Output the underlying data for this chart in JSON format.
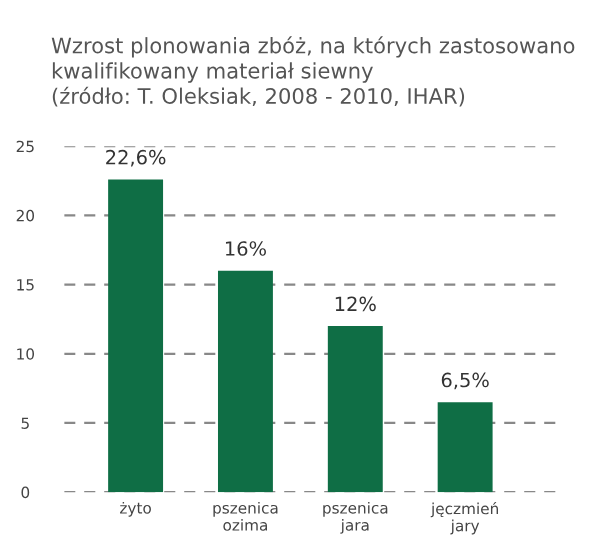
{
  "chart_data": {
    "type": "bar",
    "title": "Wzrost plonowania zbóż, na których zastosowano\nkwalifikowany materiał siewny\n(źródło: T. Oleksiak, 2008 - 2010, IHAR)",
    "categories": [
      "żyto",
      "pszenica\nozima",
      "pszenica\njara",
      "jęczmień\njary"
    ],
    "values": [
      22.6,
      16,
      12,
      6.5
    ],
    "value_labels": [
      "22,6%",
      "16%",
      "12%",
      "6,5%"
    ],
    "color": "#0f6e45",
    "ylim": [
      0,
      25
    ],
    "yticks": [
      0,
      5,
      10,
      15,
      20,
      25
    ],
    "grid": "y",
    "line_style": "dashed"
  }
}
